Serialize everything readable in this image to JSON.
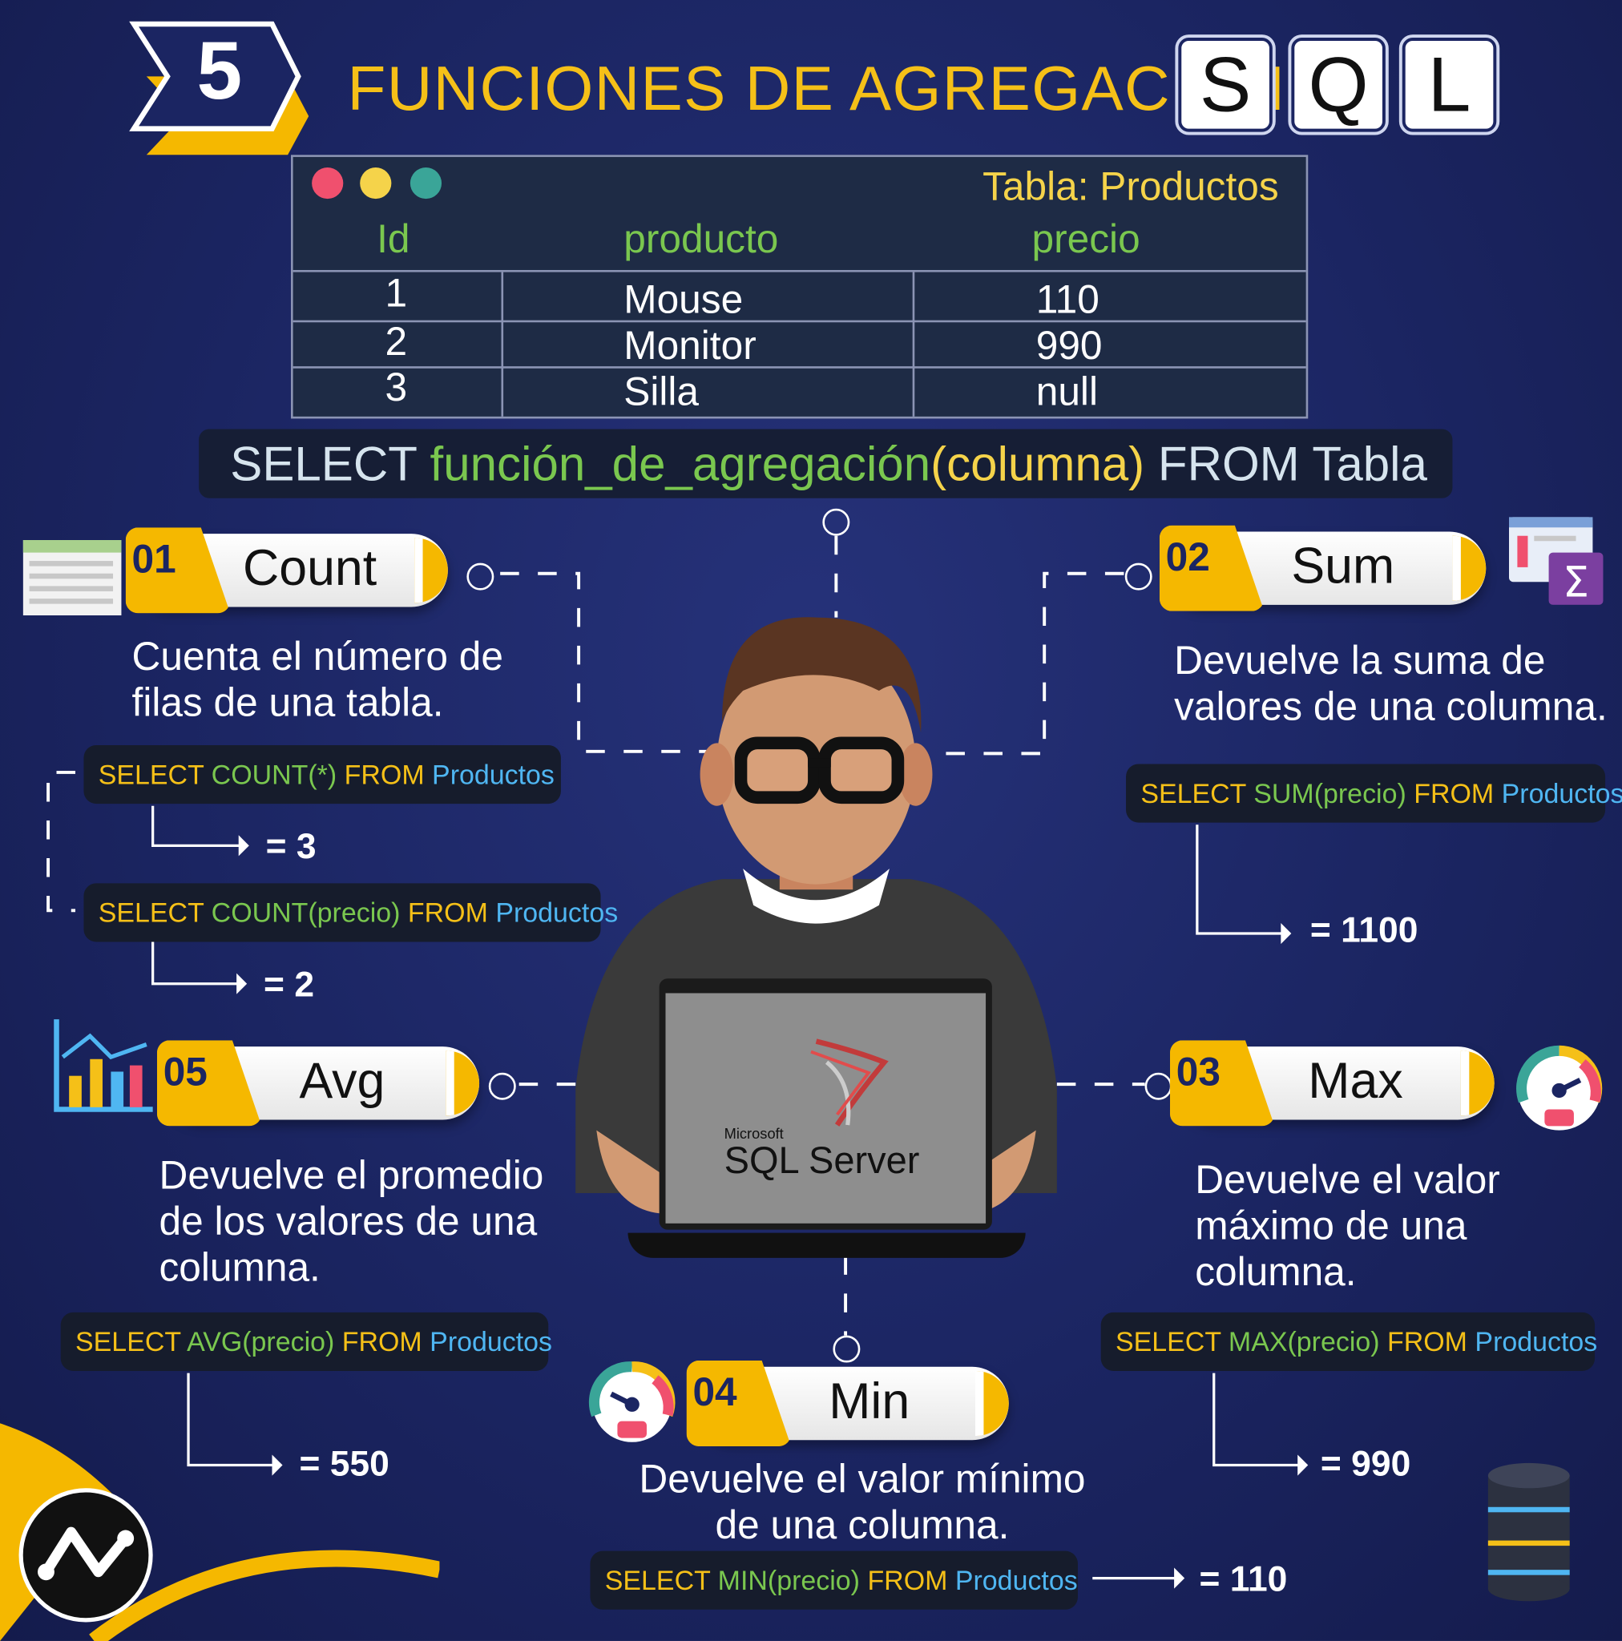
{
  "header": {
    "number": "5",
    "title": "FUNCIONES DE AGREGACIÓN",
    "sql_letters": [
      "S",
      "Q",
      "L"
    ]
  },
  "table": {
    "title": "Tabla: Productos",
    "columns": [
      "Id",
      "producto",
      "precio"
    ],
    "rows": [
      [
        "1",
        "Mouse",
        "110"
      ],
      [
        "2",
        "Monitor",
        "990"
      ],
      [
        "3",
        "Silla",
        "null"
      ]
    ]
  },
  "syntax": {
    "select": "SELECT",
    "function": "función_de_agregación",
    "open": "(",
    "column": "columna",
    "close": ")",
    "from": "FROM",
    "table": "Tabla"
  },
  "functions": {
    "count": {
      "num": "01",
      "label": "Count",
      "desc1": "Cuenta el número de",
      "desc2": "filas de una tabla.",
      "q1": {
        "select": "SELECT",
        "func": "COUNT(*)",
        "from": "FROM",
        "table": "Productos"
      },
      "r1": "= 3",
      "q2": {
        "select": "SELECT",
        "func": "COUNT(precio)",
        "from": "FROM",
        "table": "Productos"
      },
      "r2": "= 2"
    },
    "sum": {
      "num": "02",
      "label": "Sum",
      "desc1": "Devuelve la suma de",
      "desc2": "valores de una columna.",
      "q": {
        "select": "SELECT",
        "func": "SUM(precio)",
        "from": "FROM",
        "table": "Productos"
      },
      "r": "= 1100"
    },
    "max": {
      "num": "03",
      "label": "Max",
      "desc1": "Devuelve el valor",
      "desc2": "máximo de una",
      "desc3": "columna.",
      "q": {
        "select": "SELECT",
        "func": "MAX(precio)",
        "from": "FROM",
        "table": "Productos"
      },
      "r": "= 990"
    },
    "min": {
      "num": "04",
      "label": "Min",
      "desc1": "Devuelve el valor mínimo",
      "desc2": "de una columna.",
      "q": {
        "select": "SELECT",
        "func": "MIN(precio)",
        "from": "FROM",
        "table": "Productos"
      },
      "r": "= 110"
    },
    "avg": {
      "num": "05",
      "label": "Avg",
      "desc1": "Devuelve el promedio",
      "desc2": "de los valores de una",
      "desc3": "columna.",
      "q": {
        "select": "SELECT",
        "func": "AVG(precio)",
        "from": "FROM",
        "table": "Productos"
      },
      "r": "= 550"
    }
  },
  "laptop": {
    "brand_small": "Microsoft",
    "brand": "SQL Server"
  },
  "icons": [
    "spreadsheet-icon",
    "sum-sigma-icon",
    "bar-chart-icon",
    "gauge-icon",
    "database-icon",
    "logo-icon"
  ],
  "colors": {
    "background": "#1b2562",
    "accent": "#f5c018",
    "code_green": "#7ac74f",
    "code_blue": "#4fb6f2"
  }
}
